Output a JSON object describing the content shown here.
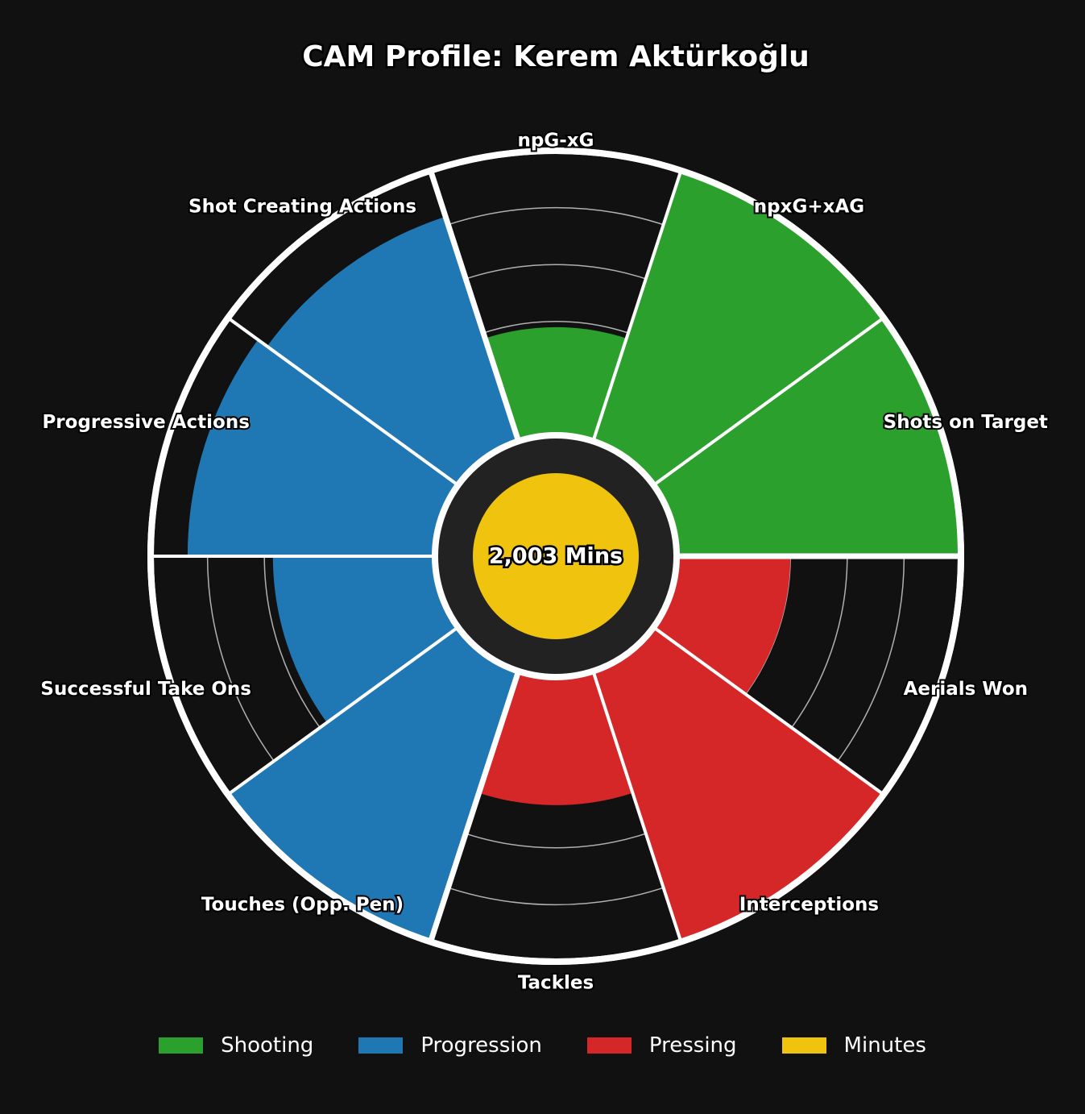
{
  "chart_data": {
    "type": "radial-bar",
    "title": "CAM Profile: Kerem Aktürkoğlu",
    "scale": [
      0,
      100
    ],
    "center_label": "2,003 Mins",
    "categories": [
      "npG-xG",
      "npxG+xAG",
      "Shots on Target",
      "Aerials Won",
      "Interceptions",
      "Tackles",
      "Touches (Opp. Pen)",
      "Successful Take Ons",
      "Progressive Actions",
      "Shot Creating Actions"
    ],
    "values": [
      38,
      100,
      100,
      40,
      100,
      45,
      100,
      57,
      87,
      83
    ],
    "groups": [
      "Shooting",
      "Shooting",
      "Shooting",
      "Pressing",
      "Pressing",
      "Pressing",
      "Progression",
      "Progression",
      "Progression",
      "Progression"
    ],
    "legend": [
      {
        "name": "Shooting",
        "color": "#2ca02c"
      },
      {
        "name": "Progression",
        "color": "#1f77b4"
      },
      {
        "name": "Pressing",
        "color": "#d62728"
      },
      {
        "name": "Minutes",
        "color": "#f0c30f"
      }
    ],
    "colors": {
      "background": "#111111",
      "hub": "#222222",
      "minutes": "#f0c30f",
      "outline": "#ffffff"
    }
  }
}
